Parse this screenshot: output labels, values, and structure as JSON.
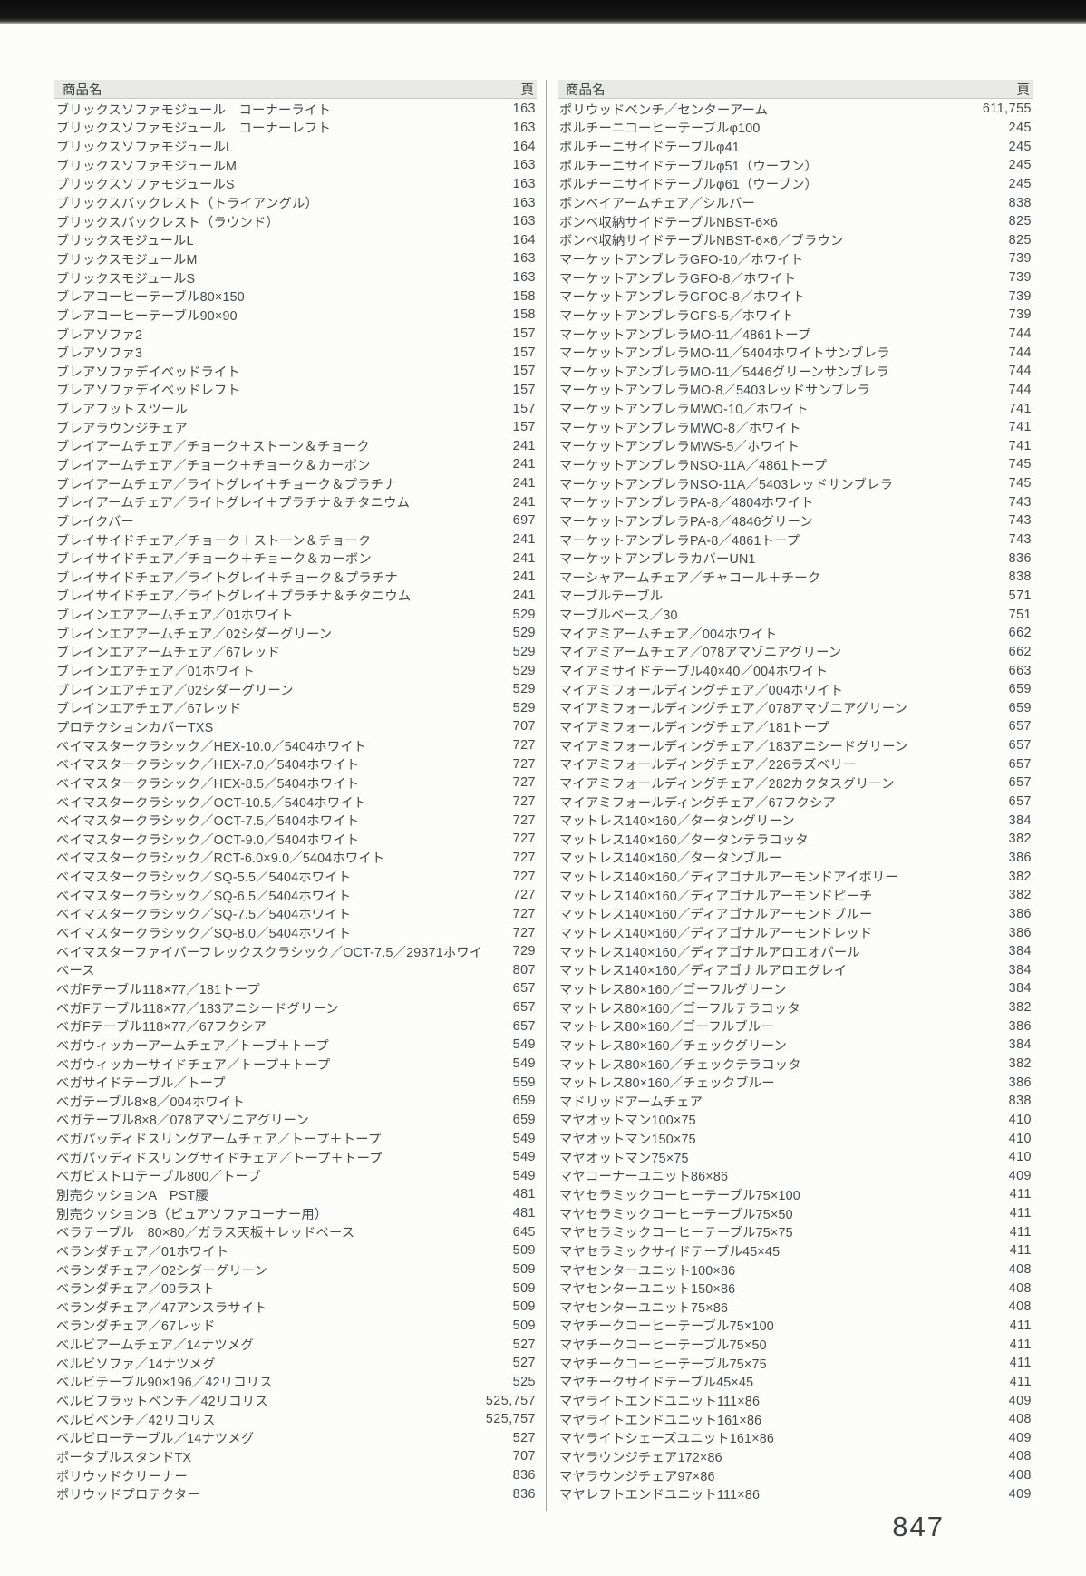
{
  "headers": {
    "product": "商品名",
    "page": "頁"
  },
  "page_number": "847",
  "columns": {
    "left": [
      {
        "name": "ブリックスソファモジュール　コーナーライト",
        "page": "163"
      },
      {
        "name": "ブリックスソファモジュール　コーナーレフト",
        "page": "163"
      },
      {
        "name": "ブリックスソファモジュールL",
        "page": "164"
      },
      {
        "name": "ブリックスソファモジュールM",
        "page": "163"
      },
      {
        "name": "ブリックスソファモジュールS",
        "page": "163"
      },
      {
        "name": "ブリックスバックレスト（トライアングル）",
        "page": "163"
      },
      {
        "name": "ブリックスバックレスト（ラウンド）",
        "page": "163"
      },
      {
        "name": "ブリックスモジュールL",
        "page": "164"
      },
      {
        "name": "ブリックスモジュールM",
        "page": "163"
      },
      {
        "name": "ブリックスモジュールS",
        "page": "163"
      },
      {
        "name": "ブレアコーヒーテーブル80×150",
        "page": "158"
      },
      {
        "name": "ブレアコーヒーテーブル90×90",
        "page": "158"
      },
      {
        "name": "ブレアソファ2",
        "page": "157"
      },
      {
        "name": "ブレアソファ3",
        "page": "157"
      },
      {
        "name": "ブレアソファデイベッドライト",
        "page": "157"
      },
      {
        "name": "ブレアソファデイベッドレフト",
        "page": "157"
      },
      {
        "name": "ブレアフットスツール",
        "page": "157"
      },
      {
        "name": "ブレアラウンジチェア",
        "page": "157"
      },
      {
        "name": "ブレイアームチェア／チョーク＋ストーン＆チョーク",
        "page": "241"
      },
      {
        "name": "ブレイアームチェア／チョーク＋チョーク＆カーボン",
        "page": "241"
      },
      {
        "name": "ブレイアームチェア／ライトグレイ＋チョーク＆プラチナ",
        "page": "241"
      },
      {
        "name": "ブレイアームチェア／ライトグレイ＋プラチナ＆チタニウム",
        "page": "241"
      },
      {
        "name": "ブレイクバー",
        "page": "697"
      },
      {
        "name": "ブレイサイドチェア／チョーク＋ストーン＆チョーク",
        "page": "241"
      },
      {
        "name": "ブレイサイドチェア／チョーク＋チョーク＆カーボン",
        "page": "241"
      },
      {
        "name": "ブレイサイドチェア／ライトグレイ＋チョーク＆プラチナ",
        "page": "241"
      },
      {
        "name": "ブレイサイドチェア／ライトグレイ＋プラチナ＆チタニウム",
        "page": "241"
      },
      {
        "name": "ブレインエアアームチェア／01ホワイト",
        "page": "529"
      },
      {
        "name": "ブレインエアアームチェア／02シダーグリーン",
        "page": "529"
      },
      {
        "name": "ブレインエアアームチェア／67レッド",
        "page": "529"
      },
      {
        "name": "ブレインエアチェア／01ホワイト",
        "page": "529"
      },
      {
        "name": "ブレインエアチェア／02シダーグリーン",
        "page": "529"
      },
      {
        "name": "ブレインエアチェア／67レッド",
        "page": "529"
      },
      {
        "name": "プロテクションカバーTXS",
        "page": "707"
      },
      {
        "name": "ベイマスタークラシック／HEX-10.0／5404ホワイト",
        "page": "727"
      },
      {
        "name": "ベイマスタークラシック／HEX-7.0／5404ホワイト",
        "page": "727"
      },
      {
        "name": "ベイマスタークラシック／HEX-8.5／5404ホワイト",
        "page": "727"
      },
      {
        "name": "ベイマスタークラシック／OCT-10.5／5404ホワイト",
        "page": "727"
      },
      {
        "name": "ベイマスタークラシック／OCT-7.5／5404ホワイト",
        "page": "727"
      },
      {
        "name": "ベイマスタークラシック／OCT-9.0／5404ホワイト",
        "page": "727"
      },
      {
        "name": "ベイマスタークラシック／RCT-6.0×9.0／5404ホワイト",
        "page": "727"
      },
      {
        "name": "ベイマスタークラシック／SQ-5.5／5404ホワイト",
        "page": "727"
      },
      {
        "name": "ベイマスタークラシック／SQ-6.5／5404ホワイト",
        "page": "727"
      },
      {
        "name": "ベイマスタークラシック／SQ-7.5／5404ホワイト",
        "page": "727"
      },
      {
        "name": "ベイマスタークラシック／SQ-8.0／5404ホワイト",
        "page": "727"
      },
      {
        "name": "ベイマスターファイバーフレックスクラシック／OCT-7.5／29371ホワイト",
        "page": "729"
      },
      {
        "name": "ベース",
        "page": "807"
      },
      {
        "name": "ベガFテーブル118×77／181トープ",
        "page": "657"
      },
      {
        "name": "ベガFテーブル118×77／183アニシードグリーン",
        "page": "657"
      },
      {
        "name": "ベガFテーブル118×77／67フクシア",
        "page": "657"
      },
      {
        "name": "ベガウィッカーアームチェア／トープ＋トープ",
        "page": "549"
      },
      {
        "name": "ベガウィッカーサイドチェア／トープ＋トープ",
        "page": "549"
      },
      {
        "name": "ベガサイドテーブル／トープ",
        "page": "559"
      },
      {
        "name": "ベガテーブル8×8／004ホワイト",
        "page": "659"
      },
      {
        "name": "ベガテーブル8×8／078アマゾニアグリーン",
        "page": "659"
      },
      {
        "name": "ベガパッディドスリングアームチェア／トープ＋トープ",
        "page": "549"
      },
      {
        "name": "ベガパッディドスリングサイドチェア／トープ＋トープ",
        "page": "549"
      },
      {
        "name": "ベガビストロテーブル800／トープ",
        "page": "549"
      },
      {
        "name": "別売クッションA　PST腰",
        "page": "481"
      },
      {
        "name": "別売クッションB（ピュアソファコーナー用）",
        "page": "481"
      },
      {
        "name": "ベラテーブル　80×80／ガラス天板＋レッドベース",
        "page": "645"
      },
      {
        "name": "ベランダチェア／01ホワイト",
        "page": "509"
      },
      {
        "name": "ベランダチェア／02シダーグリーン",
        "page": "509"
      },
      {
        "name": "ベランダチェア／09ラスト",
        "page": "509"
      },
      {
        "name": "ベランダチェア／47アンスラサイト",
        "page": "509"
      },
      {
        "name": "ベランダチェア／67レッド",
        "page": "509"
      },
      {
        "name": "ベルビアームチェア／14ナツメグ",
        "page": "527"
      },
      {
        "name": "ベルビソファ／14ナツメグ",
        "page": "527"
      },
      {
        "name": "ベルビテーブル90×196／42リコリス",
        "page": "525"
      },
      {
        "name": "ベルビフラットベンチ／42リコリス",
        "page": "525,757"
      },
      {
        "name": "ベルビベンチ／42リコリス",
        "page": "525,757"
      },
      {
        "name": "ベルビローテーブル／14ナツメグ",
        "page": "527"
      },
      {
        "name": "ポータブルスタンドTX",
        "page": "707"
      },
      {
        "name": "ポリウッドクリーナー",
        "page": "836"
      },
      {
        "name": "ポリウッドプロテクター",
        "page": "836"
      }
    ],
    "right": [
      {
        "name": "ポリウッドベンチ／センターアーム",
        "page": "611,755"
      },
      {
        "name": "ポルチーニコーヒーテーブルφ100",
        "page": "245"
      },
      {
        "name": "ポルチーニサイドテーブルφ41",
        "page": "245"
      },
      {
        "name": "ポルチーニサイドテーブルφ51（ウーブン）",
        "page": "245"
      },
      {
        "name": "ポルチーニサイドテーブルφ61（ウーブン）",
        "page": "245"
      },
      {
        "name": "ポンベイアームチェア／シルバー",
        "page": "838"
      },
      {
        "name": "ボンベ収納サイドテーブルNBST-6×6",
        "page": "825"
      },
      {
        "name": "ボンベ収納サイドテーブルNBST-6×6／ブラウン",
        "page": "825"
      },
      {
        "name": "マーケットアンブレラGFO-10／ホワイト",
        "page": "739"
      },
      {
        "name": "マーケットアンブレラGFO-8／ホワイト",
        "page": "739"
      },
      {
        "name": "マーケットアンブレラGFOC-8／ホワイト",
        "page": "739"
      },
      {
        "name": "マーケットアンブレラGFS-5／ホワイト",
        "page": "739"
      },
      {
        "name": "マーケットアンブレラMO-11／4861トープ",
        "page": "744"
      },
      {
        "name": "マーケットアンブレラMO-11／5404ホワイトサンブレラ",
        "page": "744"
      },
      {
        "name": "マーケットアンブレラMO-11／5446グリーンサンブレラ",
        "page": "744"
      },
      {
        "name": "マーケットアンブレラMO-8／5403レッドサンブレラ",
        "page": "744"
      },
      {
        "name": "マーケットアンブレラMWO-10／ホワイト",
        "page": "741"
      },
      {
        "name": "マーケットアンブレラMWO-8／ホワイト",
        "page": "741"
      },
      {
        "name": "マーケットアンブレラMWS-5／ホワイト",
        "page": "741"
      },
      {
        "name": "マーケットアンブレラNSO-11A／4861トープ",
        "page": "745"
      },
      {
        "name": "マーケットアンブレラNSO-11A／5403レッドサンブレラ",
        "page": "745"
      },
      {
        "name": "マーケットアンブレラPA-8／4804ホワイト",
        "page": "743"
      },
      {
        "name": "マーケットアンブレラPA-8／4846グリーン",
        "page": "743"
      },
      {
        "name": "マーケットアンブレラPA-8／4861トープ",
        "page": "743"
      },
      {
        "name": "マーケットアンブレラカバーUN1",
        "page": "836"
      },
      {
        "name": "マーシャアームチェア／チャコール＋チーク",
        "page": "838"
      },
      {
        "name": "マーブルテーブル",
        "page": "571"
      },
      {
        "name": "マーブルベース／30",
        "page": "751"
      },
      {
        "name": "マイアミアームチェア／004ホワイト",
        "page": "662"
      },
      {
        "name": "マイアミアームチェア／078アマゾニアグリーン",
        "page": "662"
      },
      {
        "name": "マイアミサイドテーブル40×40／004ホワイト",
        "page": "663"
      },
      {
        "name": "マイアミフォールディングチェア／004ホワイト",
        "page": "659"
      },
      {
        "name": "マイアミフォールディングチェア／078アマゾニアグリーン",
        "page": "659"
      },
      {
        "name": "マイアミフォールディングチェア／181トープ",
        "page": "657"
      },
      {
        "name": "マイアミフォールディングチェア／183アニシードグリーン",
        "page": "657"
      },
      {
        "name": "マイアミフォールディングチェア／226ラズベリー",
        "page": "657"
      },
      {
        "name": "マイアミフォールディングチェア／282カクタスグリーン",
        "page": "657"
      },
      {
        "name": "マイアミフォールディングチェア／67フクシア",
        "page": "657"
      },
      {
        "name": "マットレス140×160／タータングリーン",
        "page": "384"
      },
      {
        "name": "マットレス140×160／タータンテラコッタ",
        "page": "382"
      },
      {
        "name": "マットレス140×160／タータンブルー",
        "page": "386"
      },
      {
        "name": "マットレス140×160／ディアゴナルアーモンドアイボリー",
        "page": "382"
      },
      {
        "name": "マットレス140×160／ディアゴナルアーモンドピーチ",
        "page": "382"
      },
      {
        "name": "マットレス140×160／ディアゴナルアーモンドブルー",
        "page": "386"
      },
      {
        "name": "マットレス140×160／ディアゴナルアーモンドレッド",
        "page": "386"
      },
      {
        "name": "マットレス140×160／ディアゴナルアロエオパール",
        "page": "384"
      },
      {
        "name": "マットレス140×160／ディアゴナルアロエグレイ",
        "page": "384"
      },
      {
        "name": "マットレス80×160／ゴーフルグリーン",
        "page": "384"
      },
      {
        "name": "マットレス80×160／ゴーフルテラコッタ",
        "page": "382"
      },
      {
        "name": "マットレス80×160／ゴーフルブルー",
        "page": "386"
      },
      {
        "name": "マットレス80×160／チェックグリーン",
        "page": "384"
      },
      {
        "name": "マットレス80×160／チェックテラコッタ",
        "page": "382"
      },
      {
        "name": "マットレス80×160／チェックブルー",
        "page": "386"
      },
      {
        "name": "マドリッドアームチェア",
        "page": "838"
      },
      {
        "name": "マヤオットマン100×75",
        "page": "410"
      },
      {
        "name": "マヤオットマン150×75",
        "page": "410"
      },
      {
        "name": "マヤオットマン75×75",
        "page": "410"
      },
      {
        "name": "マヤコーナーユニット86×86",
        "page": "409"
      },
      {
        "name": "マヤセラミックコーヒーテーブル75×100",
        "page": "411"
      },
      {
        "name": "マヤセラミックコーヒーテーブル75×50",
        "page": "411"
      },
      {
        "name": "マヤセラミックコーヒーテーブル75×75",
        "page": "411"
      },
      {
        "name": "マヤセラミックサイドテーブル45×45",
        "page": "411"
      },
      {
        "name": "マヤセンターユニット100×86",
        "page": "408"
      },
      {
        "name": "マヤセンターユニット150×86",
        "page": "408"
      },
      {
        "name": "マヤセンターユニット75×86",
        "page": "408"
      },
      {
        "name": "マヤチークコーヒーテーブル75×100",
        "page": "411"
      },
      {
        "name": "マヤチークコーヒーテーブル75×50",
        "page": "411"
      },
      {
        "name": "マヤチークコーヒーテーブル75×75",
        "page": "411"
      },
      {
        "name": "マヤチークサイドテーブル45×45",
        "page": "411"
      },
      {
        "name": "マヤライトエンドユニット111×86",
        "page": "409"
      },
      {
        "name": "マヤライトエンドユニット161×86",
        "page": "408"
      },
      {
        "name": "マヤライトシェーズユニット161×86",
        "page": "409"
      },
      {
        "name": "マヤラウンジチェア172×86",
        "page": "408"
      },
      {
        "name": "マヤラウンジチェア97×86",
        "page": "408"
      },
      {
        "name": "マヤレフトエンドユニット111×86",
        "page": "409"
      }
    ]
  }
}
